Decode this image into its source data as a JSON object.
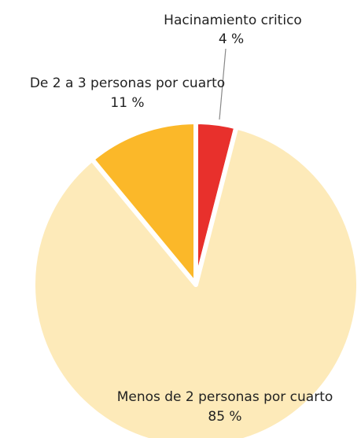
{
  "chart_data": {
    "type": "pie",
    "categories": [
      "Hacinamiento critico",
      "Menos de 2 personas por cuarto",
      "De 2 a 3 personas por cuarto"
    ],
    "values": [
      4,
      85,
      11
    ],
    "value_labels": [
      "4 %",
      "85 %",
      "11 %"
    ],
    "colors": [
      "#e8302c",
      "#fdeab9",
      "#fbb829"
    ]
  }
}
